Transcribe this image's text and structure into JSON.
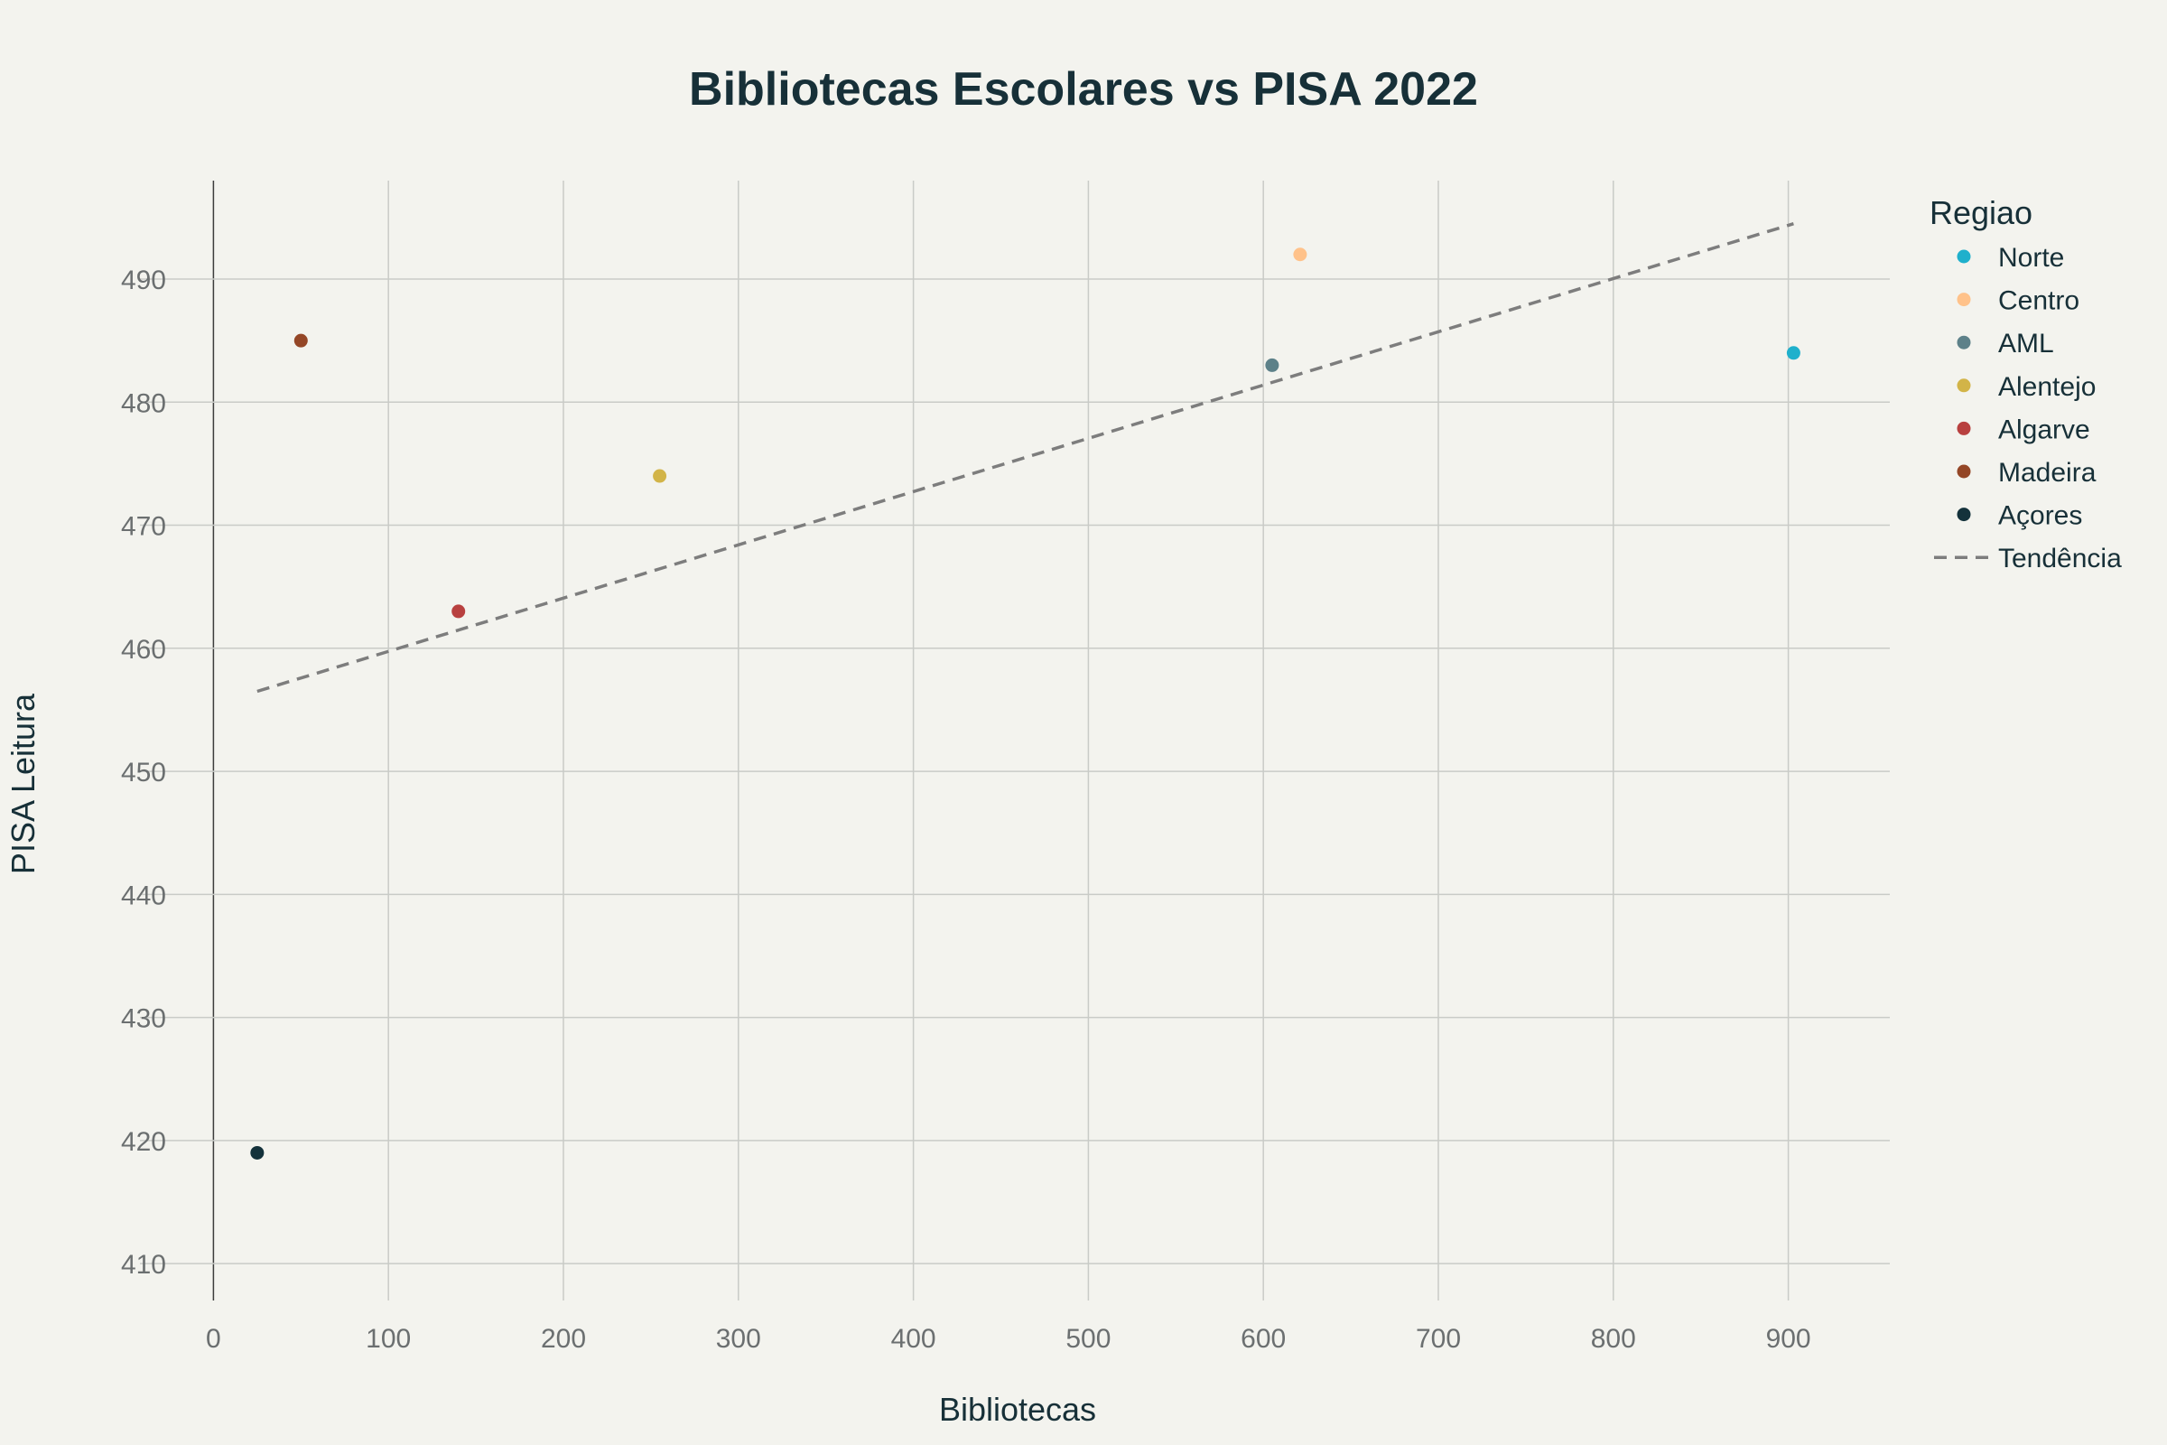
{
  "chart_data": {
    "type": "scatter",
    "title": "Bibliotecas Escolares vs PISA 2022",
    "xlabel": "Bibliotecas",
    "ylabel": "PISA Leitura",
    "xlim": [
      -42,
      958
    ],
    "ylim": [
      407,
      498
    ],
    "xticks": [
      0,
      100,
      200,
      300,
      400,
      500,
      600,
      700,
      800,
      900
    ],
    "yticks": [
      410,
      420,
      430,
      440,
      450,
      460,
      470,
      480,
      490
    ],
    "grid": true,
    "legend": {
      "title": "Regiao",
      "placement": "top-right outside"
    },
    "series": [
      {
        "name": "Norte",
        "color": "#1fb0cc",
        "x": 903,
        "y": 484
      },
      {
        "name": "Centro",
        "color": "#ffc28a",
        "x": 621,
        "y": 492
      },
      {
        "name": "AML",
        "color": "#5d8189",
        "x": 605,
        "y": 483
      },
      {
        "name": "Alentejo",
        "color": "#d2b448",
        "x": 255,
        "y": 474
      },
      {
        "name": "Algarve",
        "color": "#b8403f",
        "x": 140,
        "y": 463
      },
      {
        "name": "Madeira",
        "color": "#944626",
        "x": 50,
        "y": 485
      },
      {
        "name": "Açores",
        "color": "#14323b",
        "x": 25,
        "y": 419
      }
    ],
    "trend": {
      "name": "Tendência",
      "color": "#7d7d7d",
      "x": [
        25,
        903
      ],
      "y": [
        456.5,
        494.5
      ]
    }
  }
}
